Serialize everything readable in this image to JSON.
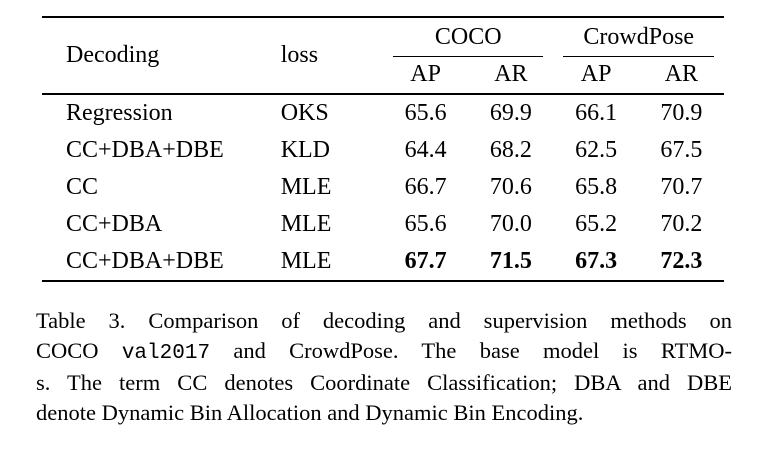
{
  "table": {
    "header": {
      "col_decoding": "Decoding",
      "col_loss": "loss",
      "group_coco": "COCO",
      "group_crowdpose": "CrowdPose",
      "sub_headers": [
        "AP",
        "AR",
        "AP",
        "AR"
      ]
    },
    "rows": [
      {
        "decoding": "Regression",
        "loss": "OKS",
        "values": [
          "65.6",
          "69.9",
          "66.1",
          "70.9"
        ]
      },
      {
        "decoding": "CC+DBA+DBE",
        "loss": "KLD",
        "values": [
          "64.4",
          "68.2",
          "62.5",
          "67.5"
        ]
      },
      {
        "decoding": "CC",
        "loss": "MLE",
        "values": [
          "66.7",
          "70.6",
          "65.8",
          "70.7"
        ]
      },
      {
        "decoding": "CC+DBA",
        "loss": "MLE",
        "values": [
          "65.6",
          "70.0",
          "65.2",
          "70.2"
        ]
      },
      {
        "decoding": "CC+DBA+DBE",
        "loss": "MLE",
        "values": [
          "67.7",
          "71.5",
          "67.3",
          "72.3"
        ]
      }
    ],
    "best_row_index": 4
  },
  "caption": {
    "line1": "Table 3.  Comparison of decoding and supervision methods on",
    "line2a": "COCO ",
    "line2_code": "val2017",
    "line2b": " and CrowdPose.  The base model is RTMO-",
    "line3": "s. The term CC denotes Coordinate Classification; DBA and DBE",
    "line4": "denote Dynamic Bin Allocation and Dynamic Bin Encoding."
  },
  "colors": {
    "text": "#000000",
    "background": "#ffffff",
    "rule": "#000000"
  }
}
